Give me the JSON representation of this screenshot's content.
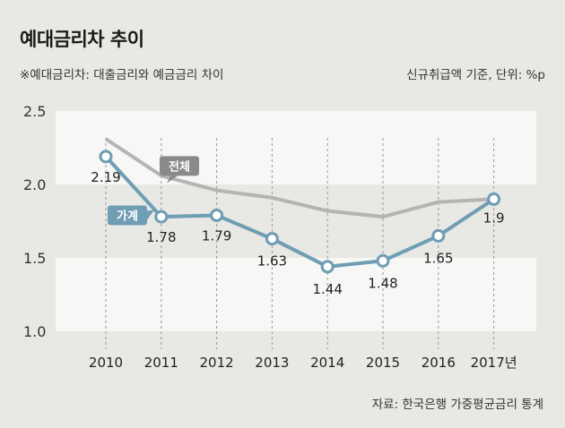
{
  "header": {
    "title": "예대금리차 추이",
    "subtitle": "※예대금리차: 대출금리와 예금금리 차이",
    "unit": "신규취급액 기준, 단위: %p",
    "source": "자료: 한국은행 가중평균금리 통계"
  },
  "colors": {
    "background": "#e8e8e4",
    "band": "#f7f7f5",
    "total_line": "#b4b4b4",
    "household_line": "#6f9db3",
    "marker_fill": "#ffffff",
    "total_tag": "#8a8a8a",
    "household_tag": "#6f9db3"
  },
  "chart_data": {
    "type": "line",
    "categories": [
      "2010",
      "2011",
      "2012",
      "2013",
      "2014",
      "2015",
      "2016",
      "2017년"
    ],
    "y_ticks": [
      "2.5",
      "2.0",
      "1.5",
      "1.0"
    ],
    "ylim": [
      1.0,
      2.5
    ],
    "grid": "alternating horizontal bands, dashed vertical guides",
    "legend": "inline labels",
    "series": [
      {
        "name": "전체",
        "values": [
          2.31,
          2.06,
          1.96,
          1.91,
          1.82,
          1.78,
          1.88,
          1.9
        ],
        "labels": [],
        "markers": false
      },
      {
        "name": "가계",
        "values": [
          2.19,
          1.78,
          1.79,
          1.63,
          1.44,
          1.48,
          1.65,
          1.9
        ],
        "labels": [
          "2.19",
          "1.78",
          "1.79",
          "1.63",
          "1.44",
          "1.48",
          "1.65",
          "1.9"
        ],
        "markers": true
      }
    ]
  }
}
